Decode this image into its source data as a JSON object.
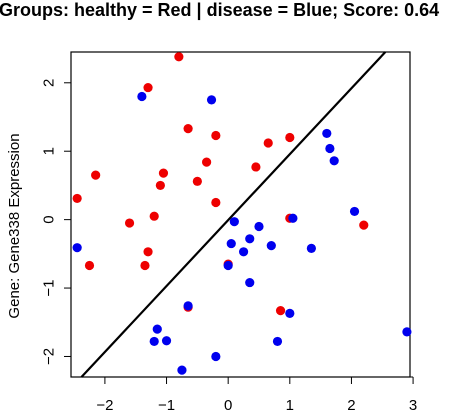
{
  "chart_data": {
    "type": "scatter",
    "title": "Groups: healthy = Red | disease = Blue; Score: 0.64",
    "xlabel": "",
    "ylabel": "Gene: Gene338 Expression",
    "xlim": [
      -2.55,
      2.95
    ],
    "ylim": [
      -2.3,
      2.45
    ],
    "x_ticks": [
      -2,
      -1,
      0,
      1,
      2,
      3
    ],
    "y_ticks": [
      -2,
      -1,
      0,
      1,
      2
    ],
    "grid": false,
    "legend": "none",
    "colors": {
      "healthy": "#ee0000",
      "disease": "#0000ee",
      "line": "#000000"
    },
    "decision_line": {
      "x1": -2.38,
      "y1": -2.3,
      "x2": 2.55,
      "y2": 2.45
    },
    "series": [
      {
        "group": "healthy",
        "color": "#ee0000",
        "points": [
          [
            -0.8,
            2.38
          ],
          [
            -1.3,
            1.93
          ],
          [
            -0.65,
            1.33
          ],
          [
            -0.2,
            1.23
          ],
          [
            0.65,
            1.12
          ],
          [
            1.0,
            1.2
          ],
          [
            -1.05,
            0.68
          ],
          [
            -0.35,
            0.84
          ],
          [
            0.45,
            0.77
          ],
          [
            -2.15,
            0.65
          ],
          [
            -1.1,
            0.5
          ],
          [
            -0.5,
            0.56
          ],
          [
            -2.45,
            0.31
          ],
          [
            -0.2,
            0.25
          ],
          [
            -1.6,
            -0.05
          ],
          [
            -1.2,
            0.05
          ],
          [
            1.0,
            0.02
          ],
          [
            2.2,
            -0.08
          ],
          [
            -1.3,
            -0.47
          ],
          [
            -2.25,
            -0.67
          ],
          [
            -1.35,
            -0.67
          ],
          [
            0.0,
            -0.65
          ],
          [
            -0.65,
            -1.28
          ],
          [
            0.85,
            -1.33
          ]
        ]
      },
      {
        "group": "disease",
        "color": "#0000ee",
        "points": [
          [
            -1.4,
            1.8
          ],
          [
            -0.27,
            1.75
          ],
          [
            1.6,
            1.26
          ],
          [
            1.65,
            1.04
          ],
          [
            1.72,
            0.86
          ],
          [
            2.05,
            0.12
          ],
          [
            0.1,
            -0.03
          ],
          [
            1.05,
            0.02
          ],
          [
            0.5,
            -0.1
          ],
          [
            0.35,
            -0.28
          ],
          [
            0.05,
            -0.35
          ],
          [
            0.7,
            -0.38
          ],
          [
            0.25,
            -0.47
          ],
          [
            1.35,
            -0.42
          ],
          [
            -2.45,
            -0.41
          ],
          [
            0.0,
            -0.67
          ],
          [
            0.35,
            -0.92
          ],
          [
            -0.65,
            -1.26
          ],
          [
            1.0,
            -1.37
          ],
          [
            2.9,
            -1.64
          ],
          [
            -1.15,
            -1.6
          ],
          [
            -1.2,
            -1.78
          ],
          [
            -1.0,
            -1.77
          ],
          [
            0.8,
            -1.78
          ],
          [
            -0.2,
            -2.0
          ],
          [
            -0.75,
            -2.2
          ]
        ]
      }
    ]
  }
}
